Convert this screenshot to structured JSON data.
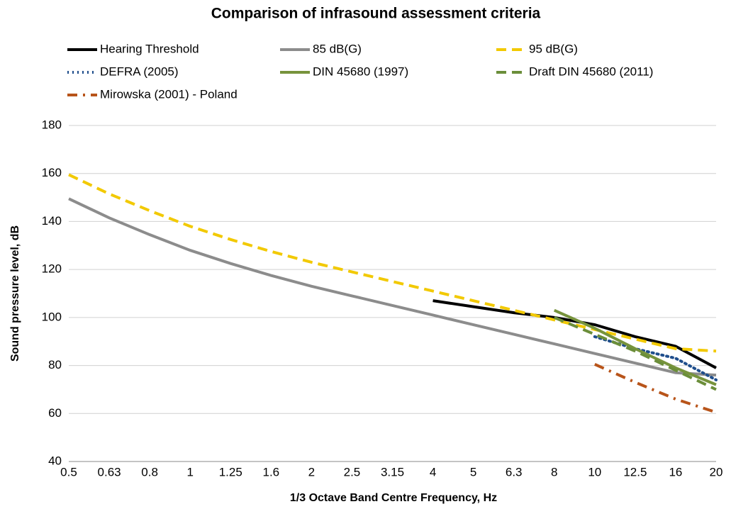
{
  "chart_data": {
    "type": "line",
    "title": "Comparison of infrasound assessment criteria",
    "x_label": "1/3 Octave Band Centre Frequency, Hz",
    "y_label": "Sound pressure level, dB",
    "categories": [
      "0.5",
      "0.63",
      "0.8",
      "1",
      "1.25",
      "1.6",
      "2",
      "2.5",
      "3.15",
      "4",
      "5",
      "6.3",
      "8",
      "10",
      "12.5",
      "16",
      "20"
    ],
    "ylim": [
      40,
      180
    ],
    "yticks": [
      40,
      60,
      80,
      100,
      120,
      140,
      160,
      180
    ],
    "grid": true,
    "legend": "top",
    "series": [
      {
        "name": "Hearing Threshold",
        "color": "#000000",
        "dash": "solid",
        "values": [
          null,
          null,
          null,
          null,
          null,
          null,
          null,
          null,
          null,
          107,
          104.5,
          102,
          100,
          97,
          92,
          88,
          79
        ]
      },
      {
        "name": "85 dB(G)",
        "color": "#8c8c8c",
        "dash": "solid",
        "values": [
          149.5,
          141.5,
          134.5,
          128,
          122.5,
          117.5,
          113,
          109,
          105,
          101,
          97,
          93,
          89,
          85,
          81,
          77,
          76
        ]
      },
      {
        "name": "95 dB(G)",
        "color": "#f2c900",
        "dash": "dash",
        "values": [
          159.5,
          151.5,
          144.5,
          138,
          132.5,
          127.5,
          123,
          119,
          115,
          111,
          107,
          103,
          99,
          95,
          91,
          87,
          86
        ]
      },
      {
        "name": "DEFRA (2005)",
        "color": "#1f4e8c",
        "dash": "dot",
        "values": [
          null,
          null,
          null,
          null,
          null,
          null,
          null,
          null,
          null,
          null,
          null,
          null,
          null,
          92,
          87,
          83,
          74
        ]
      },
      {
        "name": "DIN 45680 (1997)",
        "color": "#77933c",
        "dash": "solid",
        "values": [
          null,
          null,
          null,
          null,
          null,
          null,
          null,
          null,
          null,
          null,
          null,
          null,
          103,
          95.5,
          87,
          79,
          72
        ]
      },
      {
        "name": "Draft DIN 45680 (2011)",
        "color": "#6b8e3a",
        "dash": "dash",
        "values": [
          null,
          null,
          null,
          null,
          null,
          null,
          null,
          null,
          null,
          null,
          null,
          null,
          100,
          93,
          86,
          78,
          70
        ]
      },
      {
        "name": "Mirowska (2001) - Poland",
        "color": "#b8541a",
        "dash": "dashdot",
        "values": [
          null,
          null,
          null,
          null,
          null,
          null,
          null,
          null,
          null,
          null,
          null,
          null,
          null,
          80.5,
          73,
          66,
          60.5
        ]
      }
    ]
  }
}
